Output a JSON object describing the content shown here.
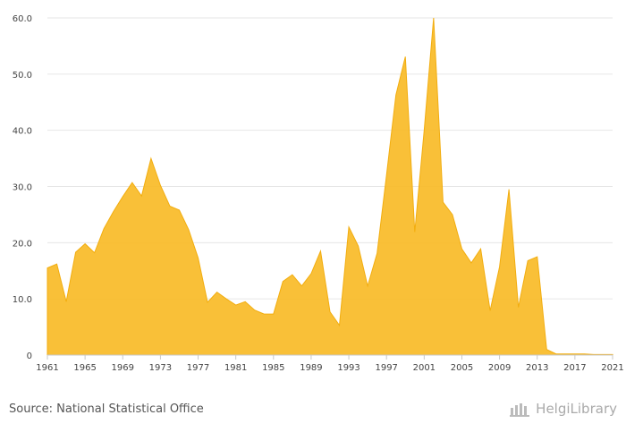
{
  "source_text": "Source: National Statistical Office",
  "brand_text": "HelgiLibrary",
  "chart_data": {
    "type": "area",
    "title": "",
    "xlabel": "",
    "ylabel": "",
    "color": "#f9bb27",
    "xlim": [
      1961,
      2021
    ],
    "ylim": [
      0,
      60
    ],
    "yticks": [
      "0",
      "10.0",
      "20.0",
      "30.0",
      "40.0",
      "50.0",
      "60.0"
    ],
    "xticks": [
      "1961",
      "1965",
      "1969",
      "1973",
      "1977",
      "1981",
      "1985",
      "1989",
      "1993",
      "1997",
      "2001",
      "2005",
      "2009",
      "2013",
      "2017",
      "2021"
    ],
    "x": [
      1961,
      1962,
      1963,
      1964,
      1965,
      1966,
      1967,
      1968,
      1969,
      1970,
      1971,
      1972,
      1973,
      1974,
      1975,
      1976,
      1977,
      1978,
      1979,
      1980,
      1981,
      1982,
      1983,
      1984,
      1985,
      1986,
      1987,
      1988,
      1989,
      1990,
      1991,
      1992,
      1993,
      1994,
      1995,
      1996,
      1997,
      1998,
      1999,
      2000,
      2001,
      2002,
      2003,
      2004,
      2005,
      2006,
      2007,
      2008,
      2009,
      2010,
      2011,
      2012,
      2013,
      2014,
      2015,
      2016,
      2017,
      2018,
      2019,
      2020,
      2021
    ],
    "values": [
      15.5,
      16.2,
      9.5,
      18.3,
      19.8,
      18.2,
      22.5,
      25.5,
      28.2,
      30.7,
      28.3,
      35.0,
      30.2,
      26.5,
      25.8,
      22.3,
      17.3,
      9.4,
      11.2,
      10.0,
      8.9,
      9.5,
      8.0,
      7.3,
      7.3,
      13.1,
      14.3,
      12.3,
      14.5,
      18.5,
      7.7,
      5.3,
      22.8,
      19.4,
      12.3,
      18.1,
      32.0,
      46.3,
      53.1,
      21.9,
      40.0,
      60.0,
      27.2,
      25.0,
      18.9,
      16.4,
      18.9,
      7.9,
      15.7,
      29.5,
      8.5,
      16.8,
      17.5,
      1.0,
      0.2,
      0.2,
      0.2,
      0.2,
      0.1,
      0.1,
      0.1
    ]
  }
}
